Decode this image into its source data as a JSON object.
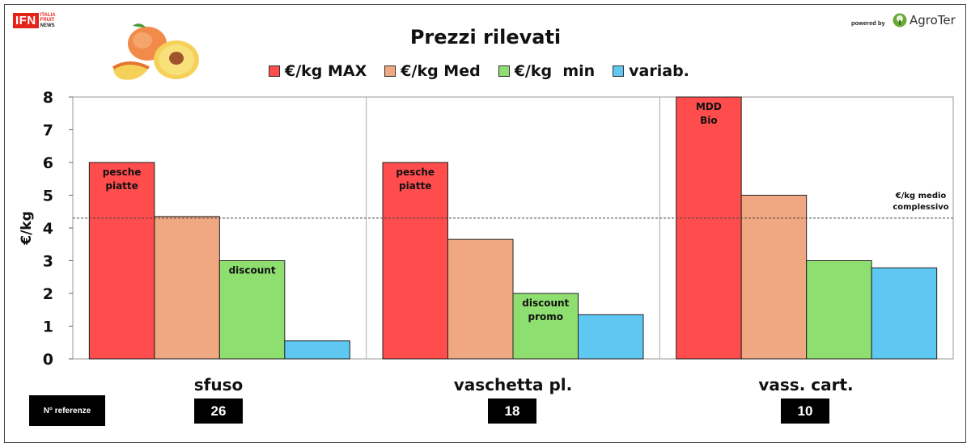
{
  "header": {
    "logo_text": "IFN",
    "logo_sub": [
      "ITALIA",
      "FRUIT",
      "NEWS"
    ],
    "powered_by": "powered by",
    "partner": "AgroTer"
  },
  "chart_data": {
    "type": "bar",
    "title": "Prezzi rilevati",
    "xlabel": "",
    "ylabel": "€/kg",
    "ylim": [
      0,
      8
    ],
    "yticks": [
      0,
      1,
      2,
      3,
      4,
      5,
      6,
      7,
      8
    ],
    "categories": [
      "sfuso",
      "vaschetta pl.",
      "vass. cart."
    ],
    "series": [
      {
        "name": "€/kg MAX",
        "color": "#ff4c4c",
        "values": [
          6.0,
          6.0,
          8.0
        ]
      },
      {
        "name": "€/kg Med",
        "color": "#f0a882",
        "values": [
          4.35,
          3.65,
          5.0
        ]
      },
      {
        "name": "€/kg  min",
        "color": "#8ede70",
        "values": [
          3.0,
          2.0,
          3.0
        ]
      },
      {
        "name": "variab.",
        "color": "#5ec8f2",
        "values": [
          0.55,
          1.35,
          2.78
        ]
      }
    ],
    "bar_annotations": [
      {
        "series": 0,
        "category": 0,
        "lines": [
          "pesche",
          "piatte"
        ]
      },
      {
        "series": 2,
        "category": 0,
        "lines": [
          "discount"
        ]
      },
      {
        "series": 0,
        "category": 1,
        "lines": [
          "pesche",
          "piatte"
        ]
      },
      {
        "series": 2,
        "category": 1,
        "lines": [
          "discount",
          "promo"
        ]
      },
      {
        "series": 0,
        "category": 2,
        "lines": [
          "MDD",
          "Bio"
        ]
      }
    ],
    "reference_line": {
      "value": 4.3,
      "label": [
        "€/kg medio",
        "complessivo"
      ]
    },
    "grid": false,
    "legend_position": "top"
  },
  "references": {
    "label": "N° referenze",
    "values": [
      "26",
      "18",
      "10"
    ]
  }
}
